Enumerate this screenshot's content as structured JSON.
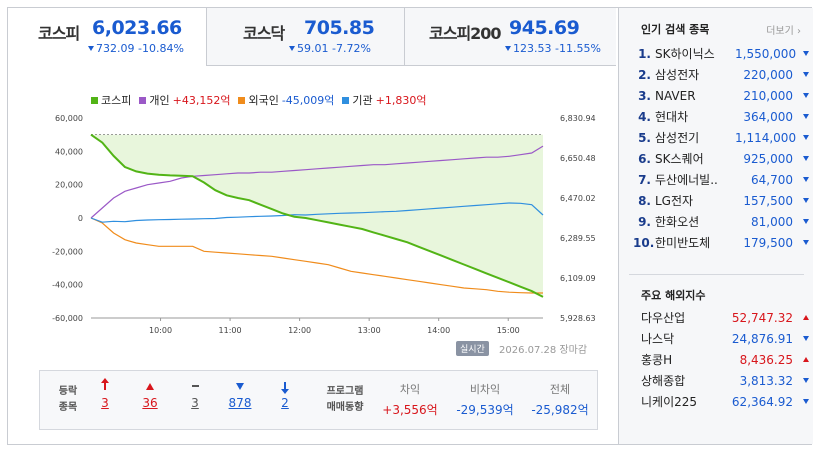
{
  "tabs": [
    {
      "name": "코스피",
      "value": "6,023.66",
      "change": "732.09",
      "rate": "-10.84%",
      "direction": "down"
    },
    {
      "name": "코스닥",
      "value": "705.85",
      "change": "59.01",
      "rate": "-7.72%",
      "direction": "down"
    },
    {
      "name": "코스피200",
      "value": "945.69",
      "change": "123.53",
      "rate": "-11.55%",
      "direction": "down"
    }
  ],
  "legend": {
    "kospi": {
      "label": "코스피",
      "color": "#52b416"
    },
    "individual": {
      "label": "개인",
      "value": "+43,152억",
      "color": "#9b59c7"
    },
    "foreign": {
      "label": "외국인",
      "value": "-45,009억",
      "color": "#f08c1c"
    },
    "institution": {
      "label": "기관",
      "value": "+1,830억",
      "color": "#2f8fdf"
    }
  },
  "chart_data": {
    "type": "line",
    "x_axis": {
      "ticks": [
        "10:00",
        "11:00",
        "12:00",
        "13:00",
        "14:00",
        "15:00"
      ]
    },
    "y_left": {
      "ticks": [
        "60,000",
        "40,000",
        "20,000",
        "0",
        "-20,000",
        "-40,000",
        "-60,000"
      ],
      "ylim": [
        -60000,
        60000
      ],
      "unit": "억"
    },
    "y_right": {
      "ticks": [
        "6,830.94",
        "6,650.48",
        "6,470.02",
        "6,289.55",
        "6,109.09",
        "5,928.63"
      ],
      "ylim": [
        5928.63,
        6830.94
      ]
    },
    "reference_line": {
      "value": 6755.8,
      "style": "dashed"
    },
    "time_range": [
      "09:00",
      "15:30"
    ],
    "series": [
      {
        "name": "개인",
        "axis": "left",
        "color": "#9b59c7",
        "values": [
          0,
          6000,
          12000,
          16000,
          18000,
          20000,
          21000,
          22000,
          24000,
          25000,
          25500,
          26000,
          26500,
          27000,
          27000,
          27500,
          27500,
          28000,
          28500,
          29000,
          29500,
          30000,
          30500,
          31000,
          31500,
          32000,
          32000,
          32500,
          33000,
          33500,
          34000,
          34500,
          35000,
          35500,
          36000,
          36500,
          36500,
          37000,
          38000,
          39000,
          43152
        ]
      },
      {
        "name": "외국인",
        "axis": "left",
        "color": "#f08c1c",
        "values": [
          0,
          -3000,
          -9000,
          -13000,
          -15000,
          -16000,
          -17000,
          -17000,
          -17000,
          -17000,
          -20000,
          -20500,
          -21000,
          -21500,
          -22000,
          -22500,
          -23000,
          -24000,
          -25000,
          -26000,
          -27000,
          -28000,
          -30000,
          -32000,
          -33000,
          -34000,
          -35000,
          -36000,
          -37000,
          -38000,
          -39000,
          -40000,
          -41000,
          -42000,
          -42500,
          -43000,
          -44000,
          -44500,
          -44800,
          -45000,
          -45009
        ]
      },
      {
        "name": "기관",
        "axis": "left",
        "color": "#2f8fdf",
        "values": [
          0,
          -2500,
          -2000,
          -2200,
          -1500,
          -1200,
          -1000,
          -900,
          -700,
          -600,
          -400,
          -300,
          300,
          500,
          800,
          1000,
          1200,
          1500,
          2000,
          1800,
          2200,
          2500,
          2800,
          3000,
          3200,
          3500,
          3800,
          4000,
          4500,
          5000,
          5500,
          6000,
          6500,
          7000,
          7500,
          8000,
          8500,
          9000,
          8800,
          8000,
          1830
        ]
      },
      {
        "name": "코스피",
        "axis": "right",
        "color": "#52b416",
        "fill": true,
        "values": [
          6755.8,
          6720,
          6660,
          6610,
          6590,
          6580,
          6575,
          6572,
          6570,
          6568,
          6540,
          6505,
          6482,
          6470,
          6460,
          6440,
          6420,
          6400,
          6385,
          6380,
          6370,
          6360,
          6350,
          6340,
          6330,
          6315,
          6300,
          6285,
          6270,
          6250,
          6230,
          6210,
          6190,
          6170,
          6150,
          6130,
          6110,
          6090,
          6070,
          6050,
          6023.66
        ]
      }
    ]
  },
  "status": {
    "live": "실시간",
    "timestamp": "2026.07.28 장마감"
  },
  "breadth": {
    "label": [
      "등락",
      "종목"
    ],
    "counts": [
      {
        "kind": "upper-limit",
        "value": "3",
        "color": "#d8161c"
      },
      {
        "kind": "up",
        "value": "36",
        "color": "#d8161c"
      },
      {
        "kind": "flat",
        "value": "3",
        "color": "#555555"
      },
      {
        "kind": "down",
        "value": "878",
        "color": "#1a5bd0"
      },
      {
        "kind": "lower-limit",
        "value": "2",
        "color": "#1a5bd0"
      }
    ]
  },
  "program": {
    "label": [
      "프로그램",
      "매매동향"
    ],
    "cols": [
      {
        "header": "차익",
        "value": "+3,556억",
        "color": "#d8161c"
      },
      {
        "header": "비차익",
        "value": "-29,539억",
        "color": "#1a5bd0"
      },
      {
        "header": "전체",
        "value": "-25,982억",
        "color": "#1a5bd0"
      }
    ]
  },
  "popular": {
    "title": "인기 검색 종목",
    "more": "더보기",
    "items": [
      {
        "rank": "1.",
        "name": "SK하이닉스",
        "price": "1,550,000",
        "dir": "down"
      },
      {
        "rank": "2.",
        "name": "삼성전자",
        "price": "220,000",
        "dir": "down"
      },
      {
        "rank": "3.",
        "name": "NAVER",
        "price": "210,000",
        "dir": "down"
      },
      {
        "rank": "4.",
        "name": "현대차",
        "price": "364,000",
        "dir": "down"
      },
      {
        "rank": "5.",
        "name": "삼성전기",
        "price": "1,114,000",
        "dir": "down"
      },
      {
        "rank": "6.",
        "name": "SK스퀘어",
        "price": "925,000",
        "dir": "down"
      },
      {
        "rank": "7.",
        "name": "두산에너빌..",
        "price": "64,700",
        "dir": "down"
      },
      {
        "rank": "8.",
        "name": "LG전자",
        "price": "157,500",
        "dir": "down"
      },
      {
        "rank": "9.",
        "name": "한화오션",
        "price": "81,000",
        "dir": "down"
      },
      {
        "rank": "10.",
        "name": "한미반도체",
        "price": "179,500",
        "dir": "down"
      }
    ]
  },
  "world": {
    "title": "주요 해외지수",
    "items": [
      {
        "name": "다우산업",
        "value": "52,747.32",
        "dir": "up"
      },
      {
        "name": "나스닥",
        "value": "24,876.91",
        "dir": "down"
      },
      {
        "name": "홍콩H",
        "value": "8,436.25",
        "dir": "up"
      },
      {
        "name": "상해종합",
        "value": "3,813.32",
        "dir": "down"
      },
      {
        "name": "니케이225",
        "value": "62,364.92",
        "dir": "down"
      }
    ]
  }
}
